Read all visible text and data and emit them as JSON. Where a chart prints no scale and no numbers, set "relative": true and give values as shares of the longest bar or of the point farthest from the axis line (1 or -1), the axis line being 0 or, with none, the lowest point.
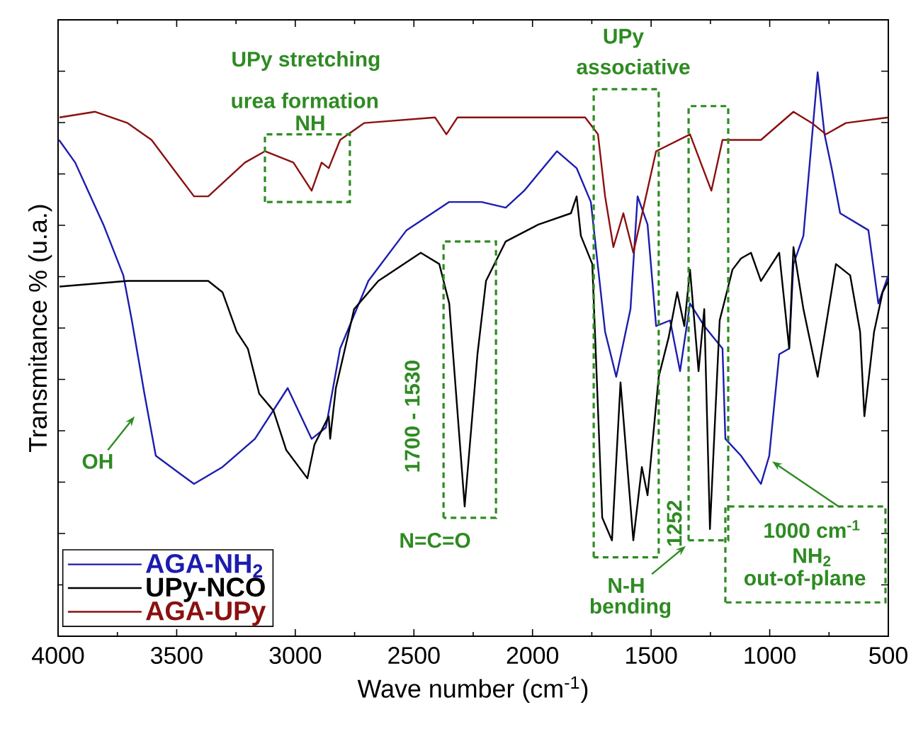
{
  "chart_data": {
    "type": "line",
    "relative": true,
    "xlabel": "Wave number (cm$^{-1}$)",
    "ylabel": "Transmitance % (u.a.)",
    "xlim": [
      4000,
      500
    ],
    "xticks": [
      4000,
      3500,
      3000,
      2500,
      2000,
      1500,
      1000,
      500
    ],
    "tick_labels": "x",
    "legend": "bottom left",
    "series": [
      {
        "name": "AGA-NH$_{2}$",
        "color": "#1c1cb0",
        "x": [
          3996,
          3928,
          3809,
          3725,
          3689,
          3636,
          3588,
          3427,
          3307,
          3170,
          3032,
          2931,
          2871,
          2811,
          2692,
          2531,
          2351,
          2214,
          2113,
          2035,
          1897,
          1814,
          1754,
          1694,
          1647,
          1587,
          1557,
          1515,
          1479,
          1420,
          1378,
          1336,
          1276,
          1199,
          1187,
          1121,
          1037,
          1002,
          960,
          918,
          900,
          858,
          798,
          769,
          739,
          703,
          584,
          542,
          500
        ],
        "values": [
          0.88,
          0.84,
          0.73,
          0.64,
          0.56,
          0.43,
          0.32,
          0.27,
          0.3,
          0.35,
          0.44,
          0.35,
          0.37,
          0.51,
          0.63,
          0.72,
          0.77,
          0.77,
          0.76,
          0.79,
          0.86,
          0.83,
          0.77,
          0.54,
          0.46,
          0.58,
          0.78,
          0.73,
          0.55,
          0.56,
          0.47,
          0.59,
          0.55,
          0.51,
          0.35,
          0.32,
          0.27,
          0.32,
          0.5,
          0.51,
          0.66,
          0.71,
          1.0,
          0.89,
          0.83,
          0.75,
          0.72,
          0.59,
          0.64
        ]
      },
      {
        "name": "UPy-NCO",
        "color": "#000000",
        "x": [
          3994,
          3707,
          3570,
          3367,
          3307,
          3247,
          3200,
          3152,
          3092,
          3038,
          2949,
          2919,
          2859,
          2853,
          2829,
          2752,
          2650,
          2471,
          2393,
          2351,
          2286,
          2232,
          2196,
          2113,
          1975,
          1838,
          1814,
          1796,
          1748,
          1706,
          1665,
          1629,
          1575,
          1539,
          1515,
          1468,
          1426,
          1390,
          1360,
          1336,
          1300,
          1276,
          1252,
          1211,
          1157,
          1121,
          1079,
          1037,
          960,
          918,
          900,
          858,
          798,
          721,
          661,
          619,
          601,
          560,
          524,
          500
        ],
        "values": [
          0.62,
          0.63,
          0.63,
          0.63,
          0.61,
          0.54,
          0.51,
          0.43,
          0.4,
          0.33,
          0.28,
          0.34,
          0.39,
          0.35,
          0.44,
          0.58,
          0.63,
          0.68,
          0.66,
          0.59,
          0.23,
          0.5,
          0.63,
          0.7,
          0.73,
          0.75,
          0.78,
          0.71,
          0.66,
          0.21,
          0.17,
          0.45,
          0.17,
          0.3,
          0.25,
          0.46,
          0.53,
          0.61,
          0.55,
          0.65,
          0.47,
          0.58,
          0.19,
          0.56,
          0.65,
          0.67,
          0.68,
          0.63,
          0.68,
          0.51,
          0.69,
          0.58,
          0.46,
          0.66,
          0.64,
          0.54,
          0.39,
          0.54,
          0.61,
          0.63
        ]
      },
      {
        "name": "AGA-UPy",
        "color": "#8b1010",
        "x": [
          3994,
          3845,
          3707,
          3606,
          3427,
          3367,
          3212,
          3128,
          3008,
          2931,
          2889,
          2859,
          2811,
          2710,
          2411,
          2363,
          2316,
          2214,
          1778,
          1724,
          1694,
          1659,
          1617,
          1575,
          1479,
          1336,
          1246,
          1199,
          1037,
          900,
          822,
          763,
          679,
          500
        ],
        "values": [
          0.92,
          0.93,
          0.91,
          0.88,
          0.78,
          0.78,
          0.84,
          0.86,
          0.84,
          0.79,
          0.84,
          0.83,
          0.88,
          0.91,
          0.92,
          0.89,
          0.92,
          0.92,
          0.92,
          0.89,
          0.78,
          0.69,
          0.75,
          0.68,
          0.86,
          0.89,
          0.79,
          0.88,
          0.88,
          0.93,
          0.91,
          0.89,
          0.91,
          0.92
        ]
      }
    ],
    "annotations": [
      "UPy stretching",
      "urea formation",
      "NH",
      "UPy",
      "associative",
      "OH",
      "1700 - 1530",
      "N=C=O",
      "1252",
      "N-H",
      "bending",
      "1000 cm$^{-1}$",
      "NH$_{2}$",
      "out-of-plane"
    ]
  }
}
